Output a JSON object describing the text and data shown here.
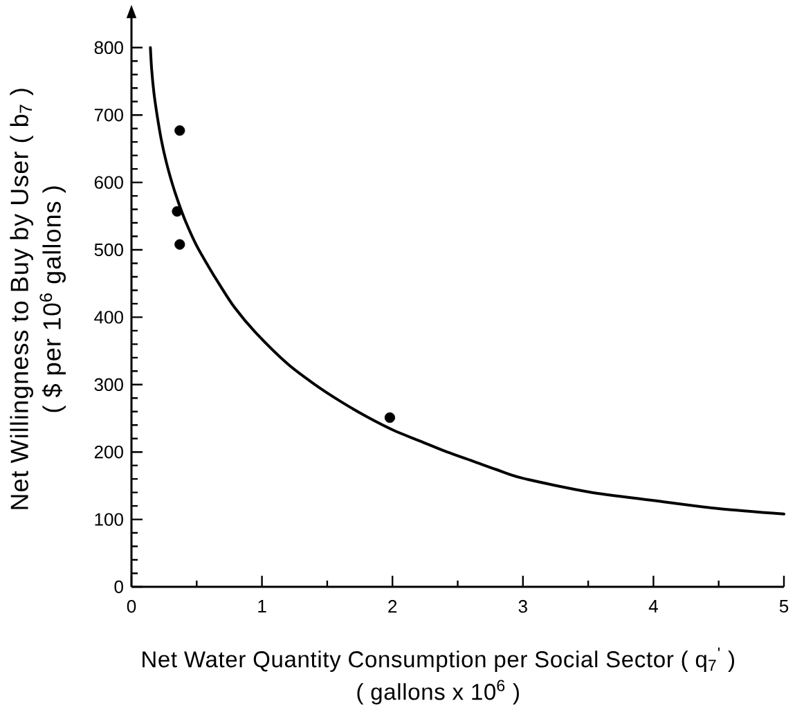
{
  "chart_data": {
    "type": "line",
    "xlabel": "Net Water Quantity Consumption per Social Sector ( q$_{7}$$^{'}$ ) ( gallons x 10$^{6}$ )",
    "ylabel": "Net Willingness to Buy by User ( b$_{7}$ ) ( $ per 10$^{6}$ gallons )",
    "xlim": [
      0,
      5
    ],
    "ylim": [
      0,
      845
    ],
    "xticks": [
      0,
      {
        "value": 0.5,
        "label": null
      },
      1,
      {
        "value": 1.5,
        "label": null
      },
      2,
      {
        "value": 2.5,
        "label": null
      },
      3,
      {
        "value": 3.5,
        "label": null
      },
      4,
      {
        "value": 4.5,
        "label": null
      },
      5
    ],
    "yticks": [
      0,
      {
        "value": 20,
        "label": null
      },
      {
        "value": 40,
        "label": null
      },
      {
        "value": 60,
        "label": null
      },
      {
        "value": 80,
        "label": null
      },
      100,
      {
        "value": 120,
        "label": null
      },
      {
        "value": 140,
        "label": null
      },
      {
        "value": 160,
        "label": null
      },
      {
        "value": 180,
        "label": null
      },
      200,
      {
        "value": 220,
        "label": null
      },
      {
        "value": 240,
        "label": null
      },
      {
        "value": 260,
        "label": null
      },
      {
        "value": 280,
        "label": null
      },
      300,
      {
        "value": 320,
        "label": null
      },
      {
        "value": 340,
        "label": null
      },
      {
        "value": 360,
        "label": null
      },
      {
        "value": 380,
        "label": null
      },
      400,
      {
        "value": 420,
        "label": null
      },
      {
        "value": 440,
        "label": null
      },
      {
        "value": 460,
        "label": null
      },
      {
        "value": 480,
        "label": null
      },
      500,
      {
        "value": 520,
        "label": null
      },
      {
        "value": 540,
        "label": null
      },
      {
        "value": 560,
        "label": null
      },
      {
        "value": 580,
        "label": null
      },
      600,
      {
        "value": 620,
        "label": null
      },
      {
        "value": 640,
        "label": null
      },
      {
        "value": 660,
        "label": null
      },
      {
        "value": 680,
        "label": null
      },
      700,
      {
        "value": 720,
        "label": null
      },
      {
        "value": 740,
        "label": null
      },
      {
        "value": 760,
        "label": null
      },
      {
        "value": 780,
        "label": null
      },
      800
    ],
    "series": [
      {
        "color": "#000000",
        "x": [
          0.145,
          0.155,
          0.172,
          0.197,
          0.228,
          0.267,
          0.316,
          0.364,
          0.417,
          0.497,
          0.585,
          0.673,
          0.788,
          0.948,
          1.195,
          1.399,
          1.603,
          1.807,
          2.011,
          2.215,
          2.419,
          2.623,
          2.796,
          3.0,
          3.5,
          4.0,
          4.5,
          5.0
        ],
        "values": [
          800,
          767,
          733,
          699,
          664,
          630,
          596,
          568,
          541,
          507,
          477,
          449,
          415,
          378,
          331,
          301,
          275,
          252,
          232,
          216,
          200,
          186,
          174,
          161,
          141,
          128,
          116,
          108
        ]
      },
      {
        "type": "scatter",
        "color": "#000000",
        "marker": "circle",
        "x": [
          0.37,
          0.35,
          0.37,
          1.98
        ],
        "values": [
          677,
          557,
          508,
          251
        ]
      }
    ]
  }
}
